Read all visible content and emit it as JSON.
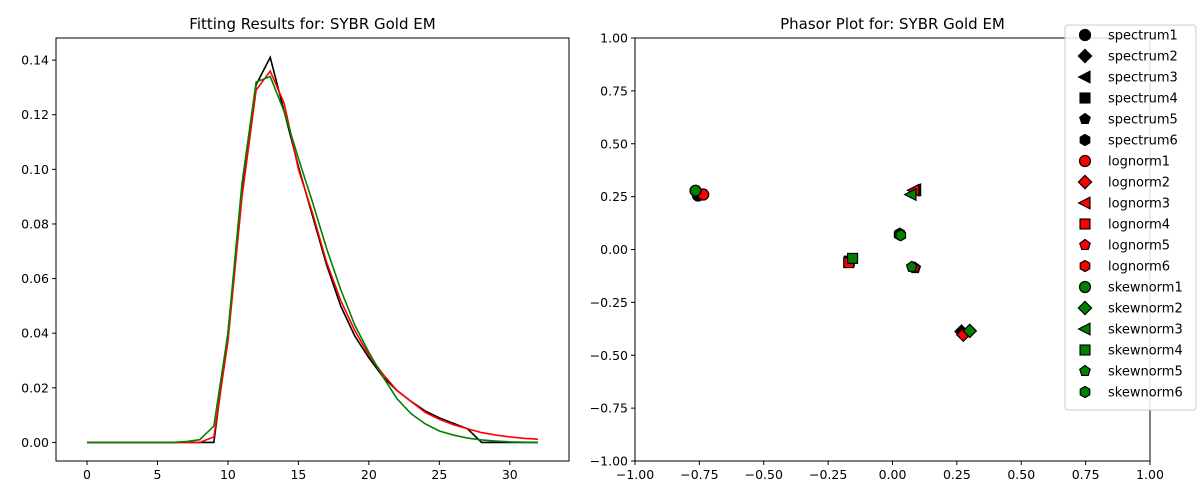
{
  "chart_data": [
    {
      "type": "line",
      "title": "Fitting Results for: SYBR Gold EM",
      "xlabel": "",
      "ylabel": "",
      "xlim": [
        -2.2,
        34.2
      ],
      "ylim": [
        -0.0068,
        0.1481
      ],
      "xticks": [
        0,
        5,
        10,
        15,
        20,
        25,
        30
      ],
      "yticks": [
        0.0,
        0.02,
        0.04,
        0.06,
        0.08,
        0.1,
        0.12,
        0.14
      ],
      "ytick_labels": [
        "0.00",
        "0.02",
        "0.04",
        "0.06",
        "0.08",
        "0.10",
        "0.12",
        "0.14"
      ],
      "grid": false,
      "x": [
        0,
        1,
        2,
        3,
        4,
        5,
        6,
        7,
        8,
        9,
        10,
        11,
        12,
        13,
        14,
        15,
        16,
        17,
        18,
        19,
        20,
        21,
        22,
        23,
        24,
        25,
        26,
        27,
        28,
        29,
        30,
        31,
        32
      ],
      "series": [
        {
          "color": "#000000",
          "values": [
            0,
            0,
            0,
            0,
            0,
            0,
            0,
            0,
            0,
            0,
            0.04,
            0.092,
            0.131,
            0.141,
            0.121,
            0.101,
            0.083,
            0.065,
            0.05,
            0.039,
            0.031,
            0.024,
            0.019,
            0.015,
            0.0115,
            0.009,
            0.007,
            0.005,
            0,
            0,
            0,
            0,
            0
          ]
        },
        {
          "color": "#ff0000",
          "values": [
            0,
            0,
            0,
            0,
            0,
            0,
            0,
            0,
            0,
            0.002,
            0.037,
            0.09,
            0.129,
            0.136,
            0.124,
            0.1,
            0.084,
            0.066,
            0.052,
            0.041,
            0.032,
            0.025,
            0.019,
            0.015,
            0.011,
            0.0085,
            0.0065,
            0.005,
            0.0036,
            0.0027,
            0.002,
            0.0015,
            0.0012
          ]
        },
        {
          "color": "#008000",
          "values": [
            0,
            0,
            0,
            0,
            0,
            0,
            0,
            0.0003,
            0.001,
            0.006,
            0.04,
            0.095,
            0.132,
            0.134,
            0.121,
            0.104,
            0.088,
            0.071,
            0.056,
            0.043,
            0.033,
            0.024,
            0.016,
            0.0105,
            0.0068,
            0.0042,
            0.0027,
            0.0016,
            0.0009,
            0.0005,
            0.0002,
            0.0001,
            0
          ]
        }
      ]
    },
    {
      "type": "scatter",
      "title": "Phasor Plot for: SYBR Gold EM",
      "xlabel": "",
      "ylabel": "",
      "xlim": [
        -1.0,
        1.0
      ],
      "ylim": [
        -1.0,
        1.0
      ],
      "xticks": [
        -1.0,
        -0.75,
        -0.5,
        -0.25,
        0.0,
        0.25,
        0.5,
        0.75,
        1.0
      ],
      "xtick_labels": [
        "−1.00",
        "−0.75",
        "−0.50",
        "−0.25",
        "0.00",
        "0.25",
        "0.50",
        "0.75",
        "1.00"
      ],
      "yticks": [
        1.0,
        0.75,
        0.5,
        0.25,
        0.0,
        -0.25,
        -0.5,
        -0.75,
        -1.0
      ],
      "ytick_labels": [
        "1.00",
        "0.75",
        "0.50",
        "0.25",
        "0.00",
        "−0.25",
        "−0.50",
        "−0.75",
        "−1.00"
      ],
      "grid": false,
      "legend_position": "top-right",
      "series": [
        {
          "name": "spectrum1",
          "marker": "circle",
          "color": "#000000",
          "x": -0.755,
          "y": 0.255
        },
        {
          "name": "spectrum2",
          "marker": "diamond",
          "color": "#000000",
          "x": 0.268,
          "y": -0.388
        },
        {
          "name": "spectrum3",
          "marker": "triangle-left",
          "color": "#000000",
          "x": 0.09,
          "y": 0.282
        },
        {
          "name": "spectrum4",
          "marker": "square",
          "color": "#000000",
          "x": -0.168,
          "y": -0.055
        },
        {
          "name": "spectrum5",
          "marker": "pentagon",
          "color": "#000000",
          "x": 0.088,
          "y": -0.088
        },
        {
          "name": "spectrum6",
          "marker": "hexagon",
          "color": "#000000",
          "x": 0.028,
          "y": 0.075
        },
        {
          "name": "lognorm1",
          "marker": "circle",
          "color": "#ff0000",
          "x": -0.735,
          "y": 0.26
        },
        {
          "name": "lognorm2",
          "marker": "diamond",
          "color": "#ff0000",
          "x": 0.275,
          "y": -0.403
        },
        {
          "name": "lognorm3",
          "marker": "triangle-left",
          "color": "#ff0000",
          "x": 0.083,
          "y": 0.28
        },
        {
          "name": "lognorm4",
          "marker": "square",
          "color": "#ff0000",
          "x": -0.17,
          "y": -0.062
        },
        {
          "name": "lognorm5",
          "marker": "pentagon",
          "color": "#ff0000",
          "x": 0.085,
          "y": -0.085
        },
        {
          "name": "lognorm6",
          "marker": "hexagon",
          "color": "#ff0000",
          "x": 0.026,
          "y": 0.07
        },
        {
          "name": "skewnorm1",
          "marker": "circle",
          "color": "#008000",
          "x": -0.765,
          "y": 0.278
        },
        {
          "name": "skewnorm2",
          "marker": "diamond",
          "color": "#008000",
          "x": 0.3,
          "y": -0.385
        },
        {
          "name": "skewnorm3",
          "marker": "triangle-left",
          "color": "#008000",
          "x": 0.072,
          "y": 0.26
        },
        {
          "name": "skewnorm4",
          "marker": "square",
          "color": "#008000",
          "x": -0.155,
          "y": -0.042
        },
        {
          "name": "skewnorm5",
          "marker": "pentagon",
          "color": "#008000",
          "x": 0.075,
          "y": -0.082
        },
        {
          "name": "skewnorm6",
          "marker": "hexagon",
          "color": "#008000",
          "x": 0.032,
          "y": 0.067
        }
      ]
    }
  ]
}
